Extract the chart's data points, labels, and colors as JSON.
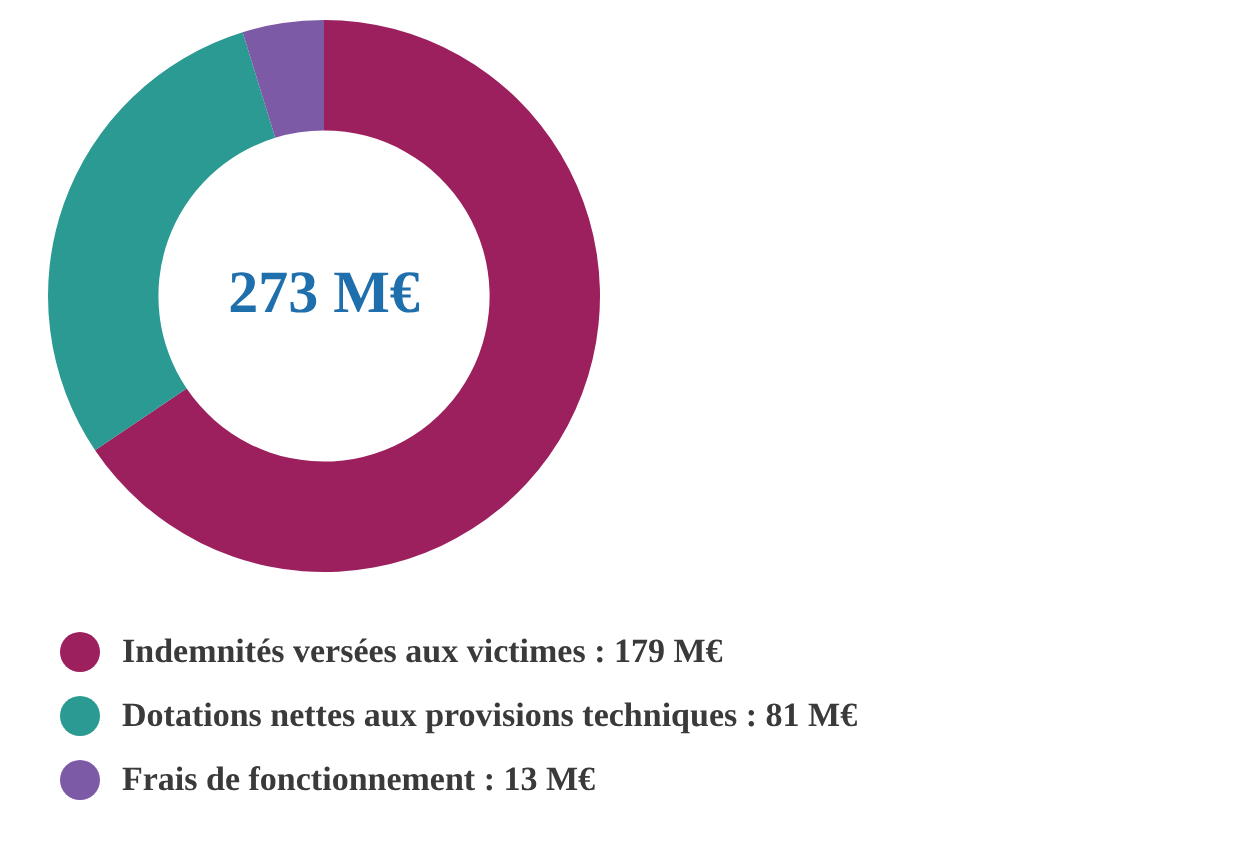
{
  "chart_data": {
    "type": "donut",
    "categories": [
      "Indemnités versées aux victimes : 179 M€",
      "Dotations nettes aux provisions techniques : 81 M€",
      "Frais de fonctionnement : 13 M€"
    ],
    "values": [
      179,
      81,
      13
    ],
    "colors": [
      "#9c1f5e",
      "#2a9a93",
      "#7d5aa6"
    ],
    "annotations": [
      "273 M€"
    ],
    "legend": "bottom"
  }
}
